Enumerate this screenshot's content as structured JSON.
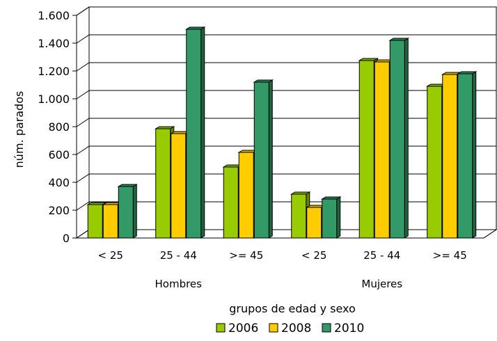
{
  "chart_data": {
    "type": "bar",
    "groups": [
      {
        "label": "Hombres",
        "categories": [
          "< 25",
          "25 - 44",
          ">= 45"
        ]
      },
      {
        "label": "Mujeres",
        "categories": [
          "< 25",
          "25 - 44",
          ">= 45"
        ]
      }
    ],
    "categories": [
      "< 25",
      "25 - 44",
      ">= 45",
      "< 25",
      "25 - 44",
      ">= 45"
    ],
    "series": [
      {
        "name": "2006",
        "color": "#99CC00",
        "values": [
          240,
          785,
          510,
          315,
          1275,
          1090
        ]
      },
      {
        "name": "2008",
        "color": "#FFCC00",
        "values": [
          240,
          750,
          615,
          220,
          1265,
          1175
        ]
      },
      {
        "name": "2010",
        "color": "#339966",
        "values": [
          370,
          1500,
          1120,
          280,
          1420,
          1180
        ]
      }
    ],
    "ylabel": "núm. parados",
    "xlabel": "grupos de edad y sexo",
    "ylim": [
      0,
      1600
    ],
    "yticks": [
      0,
      200,
      400,
      600,
      800,
      1000,
      1200,
      1400,
      1600
    ],
    "ytick_labels": [
      "0",
      "200",
      "400",
      "600",
      "800",
      "1.000",
      "1.200",
      "1.400",
      "1.600"
    ],
    "grid": true,
    "legend_position": "bottom"
  }
}
